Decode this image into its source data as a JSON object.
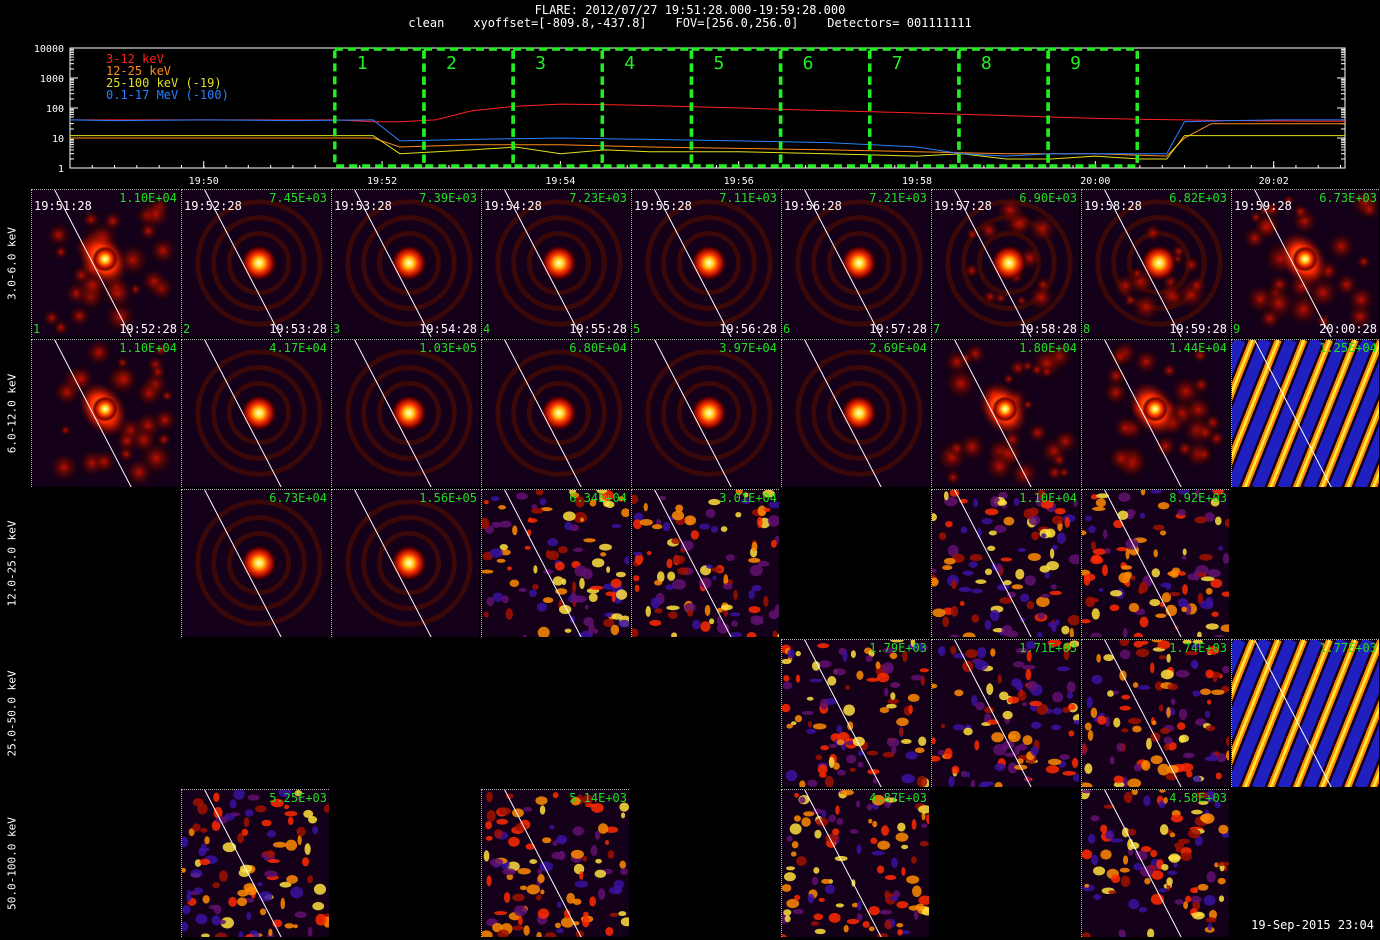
{
  "header": {
    "line1": "FLARE: 2012/07/27 19:51:28.000-19:59:28.000",
    "line2": "clean    xyoffset=[-809.8,-437.8]    FOV=[256.0,256.0]    Detectors= 001111111"
  },
  "chart_data": [
    {
      "type": "line",
      "yscale": "log",
      "ylim": [
        1,
        10000
      ],
      "ytick_labels": [
        "1",
        "10",
        "100",
        "1000",
        "10000"
      ],
      "xtick_labels": [
        "19:50",
        "19:52",
        "19:54",
        "19:56",
        "19:58",
        "20:00",
        "20:02"
      ],
      "xlim_minutes": [
        1188.5,
        1202.8
      ],
      "legend_position": "top-left",
      "colors": {
        "red": "#ff2020",
        "orange": "#ff8c1a",
        "yellow": "#e0e020",
        "blue": "#2a7fff",
        "interval_box": "#22ee22"
      },
      "series": [
        {
          "name": "3-12 keV",
          "color": "#ff2020",
          "t": [
            1188.5,
            1189,
            1189.5,
            1190,
            1190.5,
            1191,
            1191.5,
            1191.9,
            1192.2,
            1192.6,
            1193,
            1193.5,
            1194,
            1194.5,
            1195,
            1195.5,
            1196,
            1196.5,
            1197,
            1197.5,
            1198,
            1198.5,
            1199,
            1199.5,
            1200,
            1200.5,
            1201,
            1201.5,
            1202,
            1202.5,
            1202.8
          ],
          "v": [
            40,
            40,
            40,
            40,
            40,
            40,
            40,
            35,
            35,
            40,
            80,
            115,
            135,
            130,
            120,
            110,
            100,
            90,
            82,
            75,
            68,
            62,
            56,
            50,
            45,
            42,
            40,
            38,
            37,
            36,
            36
          ]
        },
        {
          "name": "12-25 keV",
          "color": "#ff8c1a",
          "t": [
            1188.5,
            1189,
            1190,
            1191,
            1191.9,
            1192.2,
            1193,
            1194,
            1195,
            1196,
            1197,
            1198,
            1199,
            1200,
            1200.8,
            1201,
            1201.3,
            1202,
            1202.8
          ],
          "v": [
            10,
            10,
            10,
            10,
            10,
            5,
            6,
            6,
            5,
            4.5,
            4,
            3.5,
            3,
            3,
            2.5,
            10,
            30,
            30,
            30
          ]
        },
        {
          "name": "25-100 keV (-19)",
          "color": "#e0e020",
          "t": [
            1188.5,
            1189,
            1190,
            1191,
            1191.9,
            1192.2,
            1193,
            1193.5,
            1194,
            1194.5,
            1195,
            1196,
            1197,
            1198,
            1198.5,
            1199,
            1199.5,
            1200,
            1200.5,
            1200.8,
            1201,
            1202,
            1202.8
          ],
          "v": [
            12,
            12,
            12,
            12,
            12,
            3,
            4,
            5,
            3,
            4,
            3.5,
            3.5,
            3,
            2.5,
            3,
            2,
            2,
            2.5,
            2,
            2,
            12,
            12,
            12
          ]
        },
        {
          "name": "0.1-17 MeV (-100)",
          "color": "#2a7fff",
          "t": [
            1188.5,
            1189,
            1190,
            1191,
            1191.9,
            1192.2,
            1193,
            1194,
            1195,
            1196,
            1197,
            1198,
            1198.5,
            1199,
            1199.5,
            1200,
            1200.5,
            1200.8,
            1201,
            1201.5,
            1202,
            1202.8
          ],
          "v": [
            40,
            38,
            40,
            38,
            40,
            8,
            9,
            10,
            9,
            8,
            7,
            5,
            3,
            2.5,
            3,
            3,
            3,
            3,
            35,
            38,
            40,
            40
          ]
        }
      ],
      "intervals": [
        {
          "label": "1",
          "start": 1191.47,
          "end": 1192.47
        },
        {
          "label": "2",
          "start": 1192.47,
          "end": 1193.47
        },
        {
          "label": "3",
          "start": 1193.47,
          "end": 1194.47
        },
        {
          "label": "4",
          "start": 1194.47,
          "end": 1195.47
        },
        {
          "label": "5",
          "start": 1195.47,
          "end": 1196.47
        },
        {
          "label": "6",
          "start": 1196.47,
          "end": 1197.47
        },
        {
          "label": "7",
          "start": 1197.47,
          "end": 1198.47
        },
        {
          "label": "8",
          "start": 1198.47,
          "end": 1199.47
        },
        {
          "label": "9",
          "start": 1199.47,
          "end": 1200.47
        }
      ]
    },
    {
      "type": "heatmap",
      "energy_bands": [
        "3.0-6.0 keV",
        "6.0-12.0 keV",
        "12.0-25.0 keV",
        "25.0-50.0 keV",
        "50.0-100.0 keV"
      ],
      "interval_start_times": [
        "19:51:28",
        "19:52:28",
        "19:53:28",
        "19:54:28",
        "19:55:28",
        "19:56:28",
        "19:57:28",
        "19:58:28",
        "19:59:28"
      ],
      "interval_end_times": [
        "19:52:28",
        "19:53:28",
        "19:54:28",
        "19:55:28",
        "19:56:28",
        "19:57:28",
        "19:58:28",
        "19:59:28",
        "20:00:28"
      ],
      "interval_numbers": [
        "1",
        "2",
        "3",
        "4",
        "5",
        "6",
        "7",
        "8",
        "9"
      ],
      "peaks": [
        [
          "1.10E+04",
          "7.45E+03",
          "7.39E+03",
          "7.23E+03",
          "7.11E+03",
          "7.21E+03",
          "6.90E+03",
          "6.82E+03",
          "6.73E+03"
        ],
        [
          "1.10E+04",
          "4.17E+04",
          "1.03E+05",
          "6.80E+04",
          "3.97E+04",
          "2.69E+04",
          "1.80E+04",
          "1.44E+04",
          "1.25E+04"
        ],
        [
          null,
          "6.73E+04",
          "1.56E+05",
          "6.34E+04",
          "3.01E+04",
          null,
          "1.10E+04",
          "8.92E+03",
          null
        ],
        [
          null,
          null,
          null,
          null,
          null,
          "1.79E+03",
          "1.71E+03",
          "1.74E+03",
          "1.77E+03"
        ],
        [
          null,
          "5.25E+03",
          null,
          "5.14E+03",
          null,
          "4.87E+03",
          null,
          "4.58E+03",
          null
        ]
      ],
      "styles": [
        [
          "diffuse",
          "source",
          "source",
          "source",
          "source",
          "source",
          "faint",
          "faint",
          "diffuse"
        ],
        [
          "diffuse",
          "source",
          "source",
          "source",
          "source",
          "source",
          "diffuse",
          "diffuse",
          "stripes"
        ],
        [
          null,
          "source",
          "source",
          "noise",
          "noise",
          null,
          "noise",
          "noise",
          null
        ],
        [
          null,
          null,
          null,
          null,
          null,
          "noise",
          "noise",
          "noise",
          "stripes"
        ],
        [
          null,
          "noise",
          null,
          "noise",
          null,
          "noise",
          null,
          "noise",
          null
        ]
      ]
    }
  ],
  "footer": {
    "timestamp": "19-Sep-2015 23:04"
  }
}
